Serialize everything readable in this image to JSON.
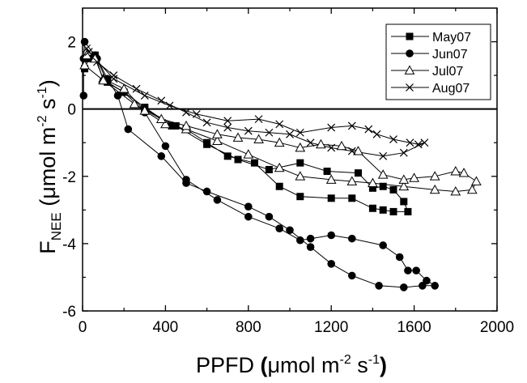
{
  "chart_data": {
    "type": "line",
    "xlabel": {
      "main": "PPFD ",
      "open": "(",
      "mu": "μ",
      "unit": "mol m",
      "exp": "-2",
      "mid": " s",
      "exp2": "-1",
      "close": ")"
    },
    "ylabel": {
      "main": "F",
      "sub": "NEE",
      "unit": " (μmol m",
      "exp": "-2",
      "mid": " s",
      "exp2": "-1",
      "close": ")"
    },
    "xlim": [
      0,
      2000
    ],
    "ylim": [
      -6,
      3
    ],
    "xticks": [
      0,
      400,
      800,
      1200,
      1600,
      2000
    ],
    "yticks": [
      -6,
      -4,
      -2,
      0,
      2
    ],
    "reference_line_y": 0,
    "legend_position": "top-right",
    "series": [
      {
        "name": "May07",
        "marker": "square-filled",
        "points": [
          [
            10,
            1.2
          ],
          [
            30,
            1.5
          ],
          [
            60,
            1.6
          ],
          [
            120,
            0.8
          ],
          [
            200,
            0.5
          ],
          [
            300,
            0.05
          ],
          [
            430,
            -0.5
          ],
          [
            500,
            -0.6
          ],
          [
            600,
            -1.0
          ],
          [
            700,
            -1.4
          ],
          [
            830,
            -1.6
          ],
          [
            950,
            -2.3
          ],
          [
            1050,
            -2.6
          ],
          [
            1200,
            -2.65
          ],
          [
            1300,
            -2.65
          ],
          [
            1400,
            -2.95
          ],
          [
            1450,
            -3.0
          ],
          [
            1500,
            -3.05
          ],
          [
            1570,
            -3.05
          ],
          [
            1550,
            -2.75
          ],
          [
            1500,
            -2.4
          ],
          [
            1450,
            -2.3
          ],
          [
            1400,
            -2.35
          ],
          [
            1330,
            -1.9
          ],
          [
            1180,
            -1.85
          ],
          [
            1050,
            -1.6
          ],
          [
            900,
            -1.8
          ],
          [
            750,
            -1.5
          ],
          [
            600,
            -1.05
          ],
          [
            450,
            -0.5
          ],
          [
            300,
            0.0
          ]
        ]
      },
      {
        "name": "Jun07",
        "marker": "circle-filled",
        "points": [
          [
            5,
            0.4
          ],
          [
            5,
            1.5
          ],
          [
            10,
            2.0
          ],
          [
            70,
            1.5
          ],
          [
            120,
            0.9
          ],
          [
            170,
            0.4
          ],
          [
            220,
            -0.6
          ],
          [
            380,
            -1.4
          ],
          [
            500,
            -2.2
          ],
          [
            600,
            -2.45
          ],
          [
            800,
            -2.9
          ],
          [
            900,
            -3.2
          ],
          [
            1000,
            -3.6
          ],
          [
            1100,
            -4.1
          ],
          [
            1200,
            -4.6
          ],
          [
            1300,
            -4.95
          ],
          [
            1430,
            -5.25
          ],
          [
            1550,
            -5.3
          ],
          [
            1640,
            -5.25
          ],
          [
            1700,
            -5.25
          ],
          [
            1660,
            -5.1
          ],
          [
            1610,
            -4.8
          ],
          [
            1570,
            -4.8
          ],
          [
            1530,
            -4.4
          ],
          [
            1450,
            -4.05
          ],
          [
            1300,
            -3.85
          ],
          [
            1200,
            -3.75
          ],
          [
            1100,
            -3.85
          ],
          [
            1050,
            -3.9
          ],
          [
            950,
            -3.55
          ],
          [
            800,
            -3.2
          ],
          [
            650,
            -2.7
          ],
          [
            500,
            -2.1
          ],
          [
            400,
            -1.1
          ],
          [
            300,
            -0.1
          ],
          [
            200,
            0.5
          ],
          [
            100,
            0.85
          ],
          [
            60,
            1.6
          ]
        ]
      },
      {
        "name": "Jul07",
        "marker": "triangle-open",
        "points": [
          [
            20,
            1.6
          ],
          [
            60,
            1.5
          ],
          [
            100,
            0.9
          ],
          [
            200,
            0.6
          ],
          [
            300,
            -0.05
          ],
          [
            400,
            -0.45
          ],
          [
            500,
            -0.6
          ],
          [
            650,
            -0.95
          ],
          [
            800,
            -1.35
          ],
          [
            950,
            -1.75
          ],
          [
            1050,
            -2.0
          ],
          [
            1200,
            -2.1
          ],
          [
            1300,
            -2.15
          ],
          [
            1400,
            -2.2
          ],
          [
            1550,
            -2.3
          ],
          [
            1700,
            -2.4
          ],
          [
            1800,
            -2.45
          ],
          [
            1880,
            -2.4
          ],
          [
            1900,
            -2.15
          ],
          [
            1840,
            -1.9
          ],
          [
            1800,
            -1.85
          ],
          [
            1700,
            -2.0
          ],
          [
            1600,
            -2.05
          ],
          [
            1550,
            -2.1
          ],
          [
            1450,
            -1.95
          ],
          [
            1330,
            -1.25
          ],
          [
            1250,
            -1.1
          ],
          [
            1150,
            -1.05
          ],
          [
            1050,
            -1.15
          ],
          [
            950,
            -1.0
          ],
          [
            850,
            -0.9
          ],
          [
            750,
            -0.85
          ],
          [
            650,
            -0.75
          ],
          [
            500,
            -0.5
          ],
          [
            380,
            -0.3
          ],
          [
            250,
            0.15
          ],
          [
            100,
            0.85
          ],
          [
            10,
            1.3
          ]
        ]
      },
      {
        "name": "Aug07",
        "marker": "x",
        "points": [
          [
            20,
            1.8
          ],
          [
            70,
            1.4
          ],
          [
            150,
            1.0
          ],
          [
            260,
            0.6
          ],
          [
            380,
            0.25
          ],
          [
            500,
            -0.1
          ],
          [
            600,
            -0.4
          ],
          [
            700,
            -0.55
          ],
          [
            800,
            -0.65
          ],
          [
            900,
            -0.7
          ],
          [
            1000,
            -0.75
          ],
          [
            1100,
            -1.0
          ],
          [
            1200,
            -1.15
          ],
          [
            1300,
            -1.25
          ],
          [
            1450,
            -1.4
          ],
          [
            1550,
            -1.3
          ],
          [
            1650,
            -1.0
          ],
          [
            1620,
            -1.05
          ],
          [
            1580,
            -1.0
          ],
          [
            1500,
            -0.9
          ],
          [
            1420,
            -0.75
          ],
          [
            1380,
            -0.6
          ],
          [
            1300,
            -0.5
          ],
          [
            1200,
            -0.55
          ],
          [
            1050,
            -0.7
          ],
          [
            950,
            -0.45
          ],
          [
            850,
            -0.3
          ],
          [
            700,
            -0.35
          ],
          [
            550,
            -0.15
          ],
          [
            420,
            0.1
          ],
          [
            300,
            0.4
          ],
          [
            150,
            0.9
          ],
          [
            30,
            1.7
          ]
        ]
      }
    ]
  }
}
